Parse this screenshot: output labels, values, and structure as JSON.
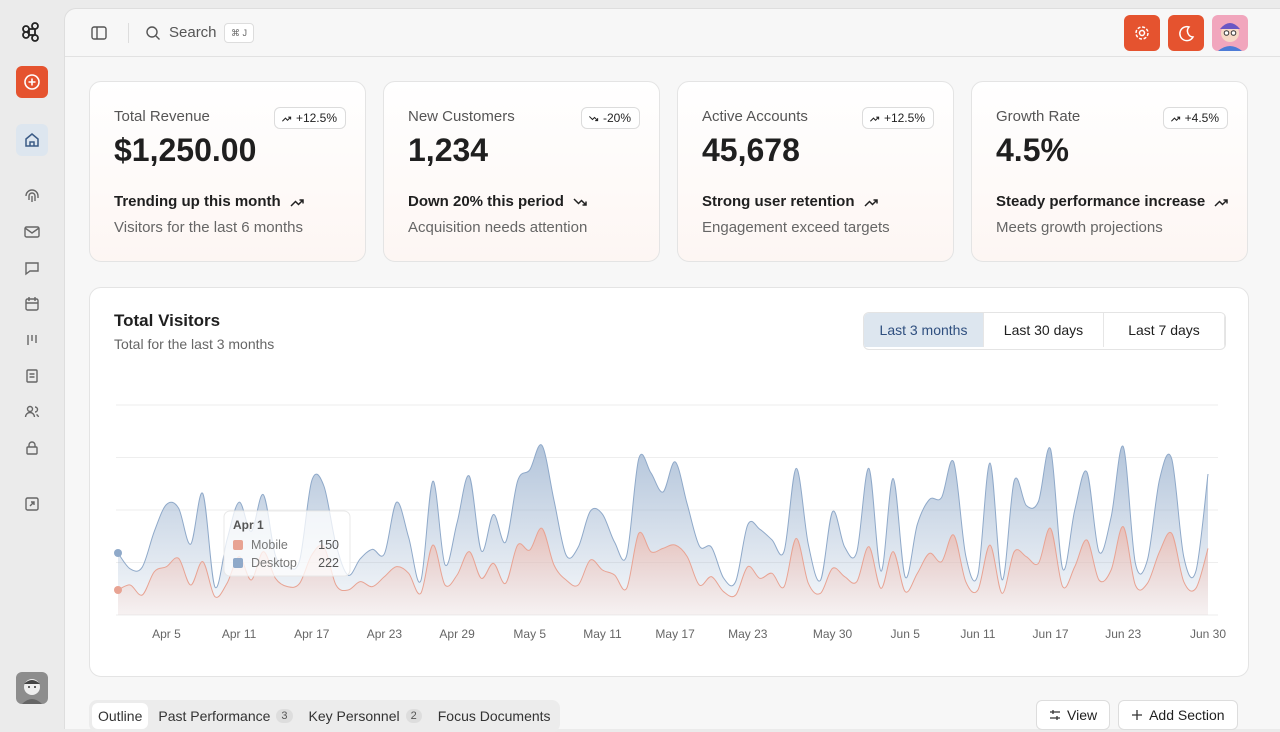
{
  "search": {
    "placeholder": "Search",
    "shortcut": "⌘ J"
  },
  "cards": [
    {
      "label": "Total Revenue",
      "badge": "+12.5%",
      "value": "$1,250.00",
      "trend": "Trending up this month",
      "note": "Visitors for the last 6 months",
      "direction": "up"
    },
    {
      "label": "New Customers",
      "badge": "-20%",
      "value": "1,234",
      "trend": "Down 20% this period",
      "note": "Acquisition needs attention",
      "direction": "down"
    },
    {
      "label": "Active Accounts",
      "badge": "+12.5%",
      "value": "45,678",
      "trend": "Strong user retention",
      "note": "Engagement exceed targets",
      "direction": "up"
    },
    {
      "label": "Growth Rate",
      "badge": "+4.5%",
      "value": "4.5%",
      "trend": "Steady performance increase",
      "note": "Meets growth projections",
      "direction": "up"
    }
  ],
  "ranges": {
    "options": [
      "Last 3 months",
      "Last 30 days",
      "Last 7 days"
    ],
    "selected": 0
  },
  "chart_data": {
    "type": "area",
    "stacked": true,
    "title": "Total Visitors",
    "subtitle": "Total for the last 3 months",
    "categories": [
      null,
      null,
      null,
      null,
      "Apr 5",
      null,
      null,
      null,
      null,
      null,
      "Apr 11",
      null,
      null,
      null,
      null,
      null,
      "Apr 17",
      null,
      null,
      null,
      null,
      null,
      "Apr 23",
      null,
      null,
      null,
      null,
      null,
      "Apr 29",
      null,
      null,
      null,
      null,
      null,
      "May 5",
      null,
      null,
      null,
      null,
      null,
      "May 11",
      null,
      null,
      null,
      null,
      null,
      "May 17",
      null,
      null,
      null,
      null,
      null,
      "May 23",
      null,
      null,
      null,
      null,
      null,
      null,
      "May 30",
      null,
      null,
      null,
      null,
      null,
      "Jun 5",
      null,
      null,
      null,
      null,
      null,
      "Jun 11",
      null,
      null,
      null,
      null,
      null,
      "Jun 17",
      null,
      null,
      null,
      null,
      null,
      "Jun 23",
      null,
      null,
      null,
      null,
      null,
      null,
      "Jun 30"
    ],
    "series": [
      {
        "name": "Mobile",
        "color": "#e8a393",
        "values": [
          150,
          180,
          120,
          260,
          290,
          340,
          180,
          320,
          110,
          190,
          350,
          210,
          380,
          220,
          170,
          190,
          360,
          410,
          180,
          150,
          200,
          170,
          230,
          290,
          250,
          130,
          420,
          180,
          240,
          380,
          220,
          310,
          190,
          420,
          390,
          520,
          300,
          210,
          180,
          330,
          270,
          240,
          160,
          490,
          380,
          400,
          420,
          350,
          180,
          230,
          140,
          120,
          290,
          220,
          250,
          170,
          460,
          190,
          130,
          280,
          230,
          200,
          410,
          160,
          380,
          140,
          250,
          370,
          320,
          480,
          200,
          150,
          420,
          130,
          380,
          350,
          310,
          520,
          170,
          290,
          450,
          210,
          270,
          530,
          180,
          190,
          380,
          490,
          200,
          160,
          400
        ]
      },
      {
        "name": "Desktop",
        "color": "#8fa9c9",
        "values": [
          222,
          97,
          167,
          242,
          373,
          301,
          245,
          409,
          59,
          261,
          327,
          292,
          342,
          137,
          120,
          138,
          446,
          364,
          243,
          89,
          137,
          224,
          138,
          387,
          215,
          75,
          383,
          122,
          315,
          454,
          165,
          293,
          247,
          385,
          481,
          498,
          388,
          149,
          227,
          293,
          335,
          197,
          197,
          448,
          473,
          338,
          499,
          315,
          235,
          177,
          82,
          81,
          252,
          294,
          201,
          213,
          420,
          233,
          78,
          340,
          178,
          178,
          470,
          103,
          439,
          88,
          294,
          323,
          385,
          438,
          155,
          92,
          492,
          81,
          426,
          307,
          371,
          475,
          107,
          341,
          408,
          169,
          317,
          480,
          132,
          141,
          434,
          448,
          149,
          103,
          446
        ]
      }
    ],
    "ylim": [
      0,
      1260
    ],
    "grid": true,
    "tooltip": {
      "title": "Apr 1",
      "index": 0
    }
  },
  "tabs": [
    {
      "label": "Outline"
    },
    {
      "label": "Past Performance",
      "count": 3
    },
    {
      "label": "Key Personnel",
      "count": 2
    },
    {
      "label": "Focus Documents"
    }
  ],
  "actions": [
    "View",
    "Add Section"
  ]
}
